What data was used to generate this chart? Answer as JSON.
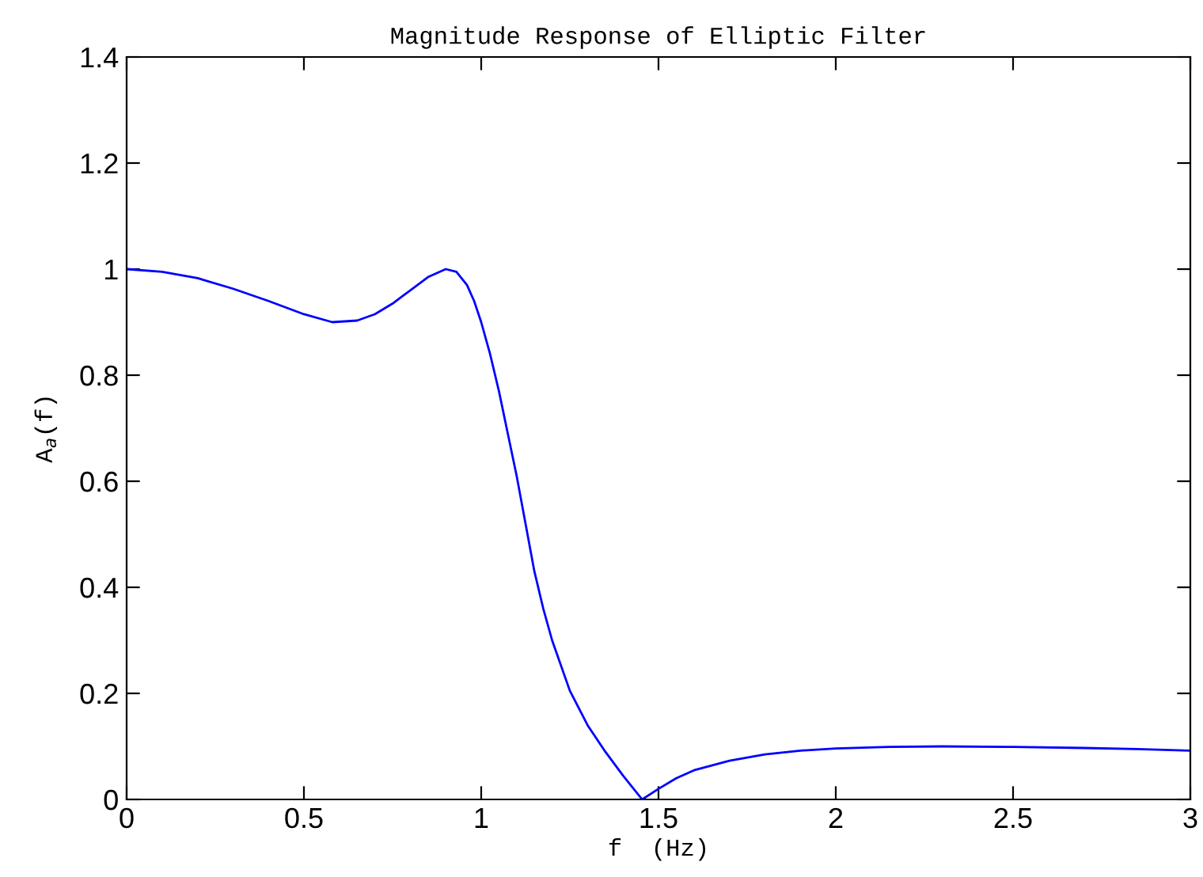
{
  "chart_data": {
    "type": "line",
    "title": "Magnitude Response of Elliptic Filter",
    "xlabel": "f  (Hz)",
    "ylabel": "A$_{a}$(f)",
    "series": [
      {
        "color": "#0000ff",
        "x": [
          0,
          0.1,
          0.2,
          0.3,
          0.4,
          0.5,
          0.58,
          0.65,
          0.7,
          0.75,
          0.8,
          0.85,
          0.9,
          0.93,
          0.96,
          0.98,
          1.0,
          1.025,
          1.05,
          1.075,
          1.1,
          1.125,
          1.15,
          1.175,
          1.2,
          1.25,
          1.3,
          1.35,
          1.4,
          1.454,
          1.5,
          1.55,
          1.6,
          1.7,
          1.8,
          1.9,
          2.0,
          2.15,
          2.3,
          2.5,
          2.7,
          2.85,
          3.0
        ],
        "values": [
          1.0,
          0.995,
          0.983,
          0.963,
          0.94,
          0.915,
          0.9,
          0.903,
          0.915,
          0.935,
          0.96,
          0.985,
          1.0,
          0.995,
          0.97,
          0.94,
          0.9,
          0.84,
          0.77,
          0.69,
          0.61,
          0.52,
          0.43,
          0.36,
          0.3,
          0.205,
          0.14,
          0.09,
          0.045,
          0.0,
          0.02,
          0.04,
          0.055,
          0.073,
          0.085,
          0.092,
          0.096,
          0.099,
          0.1,
          0.099,
          0.097,
          0.095,
          0.092
        ]
      }
    ],
    "xlim": [
      0,
      3
    ],
    "xticks": [
      0,
      0.5,
      1,
      1.5,
      2,
      2.5,
      3
    ],
    "ylim": [
      0,
      1.4
    ],
    "yticks": [
      0,
      0.2,
      0.4,
      0.6,
      0.8,
      1,
      1.2,
      1.4
    ],
    "grid": false,
    "legend": false,
    "marker": "none",
    "line_style": "solid"
  }
}
